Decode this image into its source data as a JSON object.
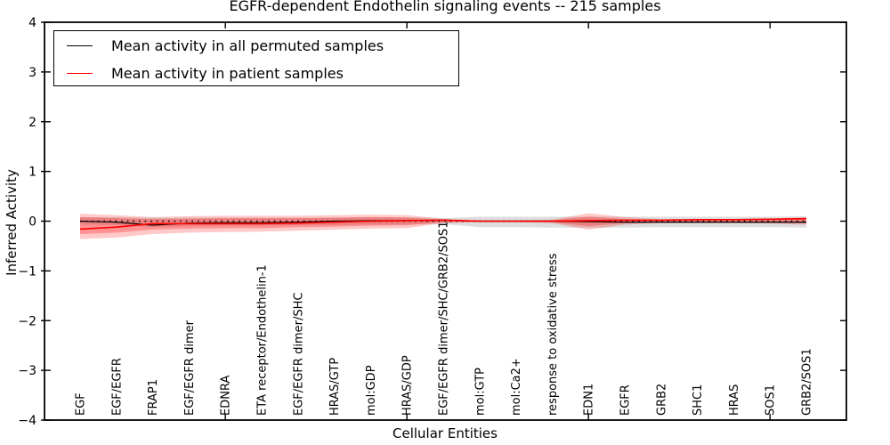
{
  "chart_data": {
    "type": "line",
    "title": "EGFR-dependent Endothelin signaling events -- 215 samples",
    "xlabel": "Cellular Entities",
    "ylabel": "Inferred Activity",
    "ylim": [
      -4,
      4
    ],
    "ytick_labels": [
      "4",
      "3",
      "2",
      "1",
      "0",
      "−1",
      "−2",
      "−3",
      "−4"
    ],
    "ytick_values": [
      4,
      3,
      2,
      1,
      0,
      -1,
      -2,
      -3,
      -4
    ],
    "xtick_mark_indices": [
      4,
      9,
      14,
      19
    ],
    "grid": false,
    "legend_position": "upper-left",
    "categories": [
      "EGF",
      "EGF/EGFR",
      "FRAP1",
      "EGF/EGFR dimer",
      "EDNRA",
      "ETA receptor/Endothelin-1",
      "EGF/EGFR dimer/SHC",
      "HRAS/GTP",
      "mol:GDP",
      "HRAS/GDP",
      "EGF/EGFR dimer/SHC/GRB2/SOS1",
      "mol:GTP",
      "mol:Ca2+",
      "response to oxidative stress",
      "EDN1",
      "EGFR",
      "GRB2",
      "SHC1",
      "HRAS",
      "SOS1",
      "GRB2/SOS1"
    ],
    "series": [
      {
        "name": "Mean activity in all permuted samples",
        "color": "#000000",
        "values": [
          0.0,
          -0.02,
          -0.08,
          -0.04,
          -0.03,
          -0.03,
          -0.02,
          0.0,
          0.01,
          0.01,
          0.02,
          0.0,
          0.0,
          0.0,
          -0.01,
          -0.02,
          -0.02,
          -0.02,
          -0.02,
          -0.02,
          -0.02
        ]
      },
      {
        "name": "Mean activity in patient samples",
        "color": "#ff0000",
        "values": [
          -0.16,
          -0.12,
          -0.05,
          -0.05,
          -0.05,
          -0.05,
          -0.04,
          -0.02,
          0.0,
          0.01,
          0.02,
          0.0,
          0.0,
          0.0,
          0.01,
          0.02,
          0.02,
          0.03,
          0.03,
          0.04,
          0.05
        ]
      }
    ],
    "bands": [
      {
        "name": "permuted-samples-range",
        "color": "rgba(0,0,0,0.13)",
        "upper": [
          0.08,
          0.08,
          0.07,
          0.07,
          0.07,
          0.07,
          0.07,
          0.07,
          0.08,
          0.08,
          0.06,
          0.09,
          0.09,
          0.09,
          0.09,
          0.09,
          0.09,
          0.09,
          0.09,
          0.09,
          0.1
        ],
        "lower": [
          -0.07,
          -0.08,
          -0.12,
          -0.1,
          -0.09,
          -0.09,
          -0.08,
          -0.08,
          -0.07,
          -0.07,
          -0.06,
          -0.12,
          -0.12,
          -0.13,
          -0.13,
          -0.13,
          -0.12,
          -0.12,
          -0.12,
          -0.12,
          -0.13
        ]
      },
      {
        "name": "patient-samples-range-outer",
        "color": "rgba(255,0,0,0.21)",
        "upper": [
          0.15,
          0.12,
          0.08,
          0.1,
          0.11,
          0.11,
          0.11,
          0.12,
          0.13,
          0.12,
          0.05,
          0.02,
          0.02,
          0.03,
          0.16,
          0.08,
          0.04,
          0.04,
          0.04,
          0.05,
          0.08
        ],
        "lower": [
          -0.36,
          -0.33,
          -0.26,
          -0.23,
          -0.22,
          -0.21,
          -0.19,
          -0.17,
          -0.15,
          -0.14,
          -0.04,
          -0.02,
          -0.02,
          -0.04,
          -0.17,
          -0.07,
          -0.04,
          -0.04,
          -0.04,
          -0.05,
          -0.07
        ]
      },
      {
        "name": "patient-samples-range-inner",
        "color": "rgba(255,0,0,0.27)",
        "upper": [
          0.08,
          0.06,
          0.04,
          0.05,
          0.06,
          0.06,
          0.06,
          0.07,
          0.08,
          0.07,
          0.03,
          0.01,
          0.01,
          0.02,
          0.09,
          0.04,
          0.02,
          0.02,
          0.02,
          0.03,
          0.05
        ],
        "lower": [
          -0.26,
          -0.23,
          -0.17,
          -0.15,
          -0.14,
          -0.14,
          -0.12,
          -0.11,
          -0.09,
          -0.08,
          -0.02,
          -0.01,
          -0.01,
          -0.02,
          -0.1,
          -0.04,
          -0.02,
          -0.02,
          -0.02,
          -0.03,
          -0.04
        ]
      }
    ],
    "zero_line": {
      "value": 0,
      "style": "dotted",
      "color": "#000000"
    }
  },
  "legend": {
    "entries": [
      {
        "label": "Mean activity in all permuted samples",
        "color": "#000000"
      },
      {
        "label": "Mean activity in patient samples",
        "color": "#ff0000"
      }
    ]
  }
}
